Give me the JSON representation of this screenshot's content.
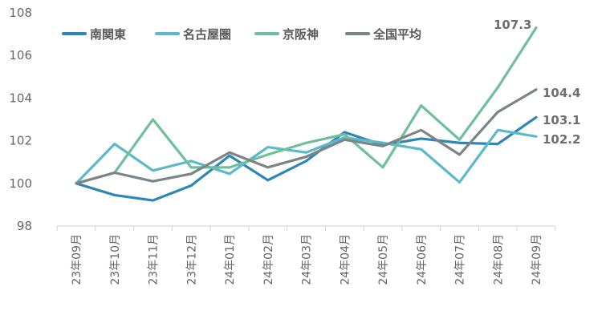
{
  "chart_data": {
    "type": "line",
    "title": "",
    "xlabel": "",
    "ylabel": "",
    "ylim": [
      98,
      108
    ],
    "yticks": [
      "98",
      "100",
      "102",
      "104",
      "106",
      "108"
    ],
    "categories": [
      "23年09月",
      "23年10月",
      "23年11月",
      "23年12月",
      "24年01月",
      "24年02月",
      "24年03月",
      "24年04月",
      "24年05月",
      "24年06月",
      "24年07月",
      "24年08月",
      "24年09月"
    ],
    "legend_position": "top-left",
    "grid": false,
    "series": [
      {
        "name": "南関東",
        "color": "#2E86B5",
        "values": [
          100.0,
          99.45,
          99.2,
          99.9,
          101.3,
          100.15,
          101.05,
          102.4,
          101.8,
          102.1,
          101.9,
          101.85,
          103.1
        ]
      },
      {
        "name": "名古屋圏",
        "color": "#5BBAC9",
        "values": [
          100.0,
          101.85,
          100.6,
          101.05,
          100.45,
          101.7,
          101.45,
          102.15,
          101.9,
          101.6,
          100.05,
          102.5,
          102.2
        ]
      },
      {
        "name": "京阪神",
        "color": "#6FBF9B",
        "values": [
          100.0,
          100.5,
          103.0,
          100.75,
          100.75,
          101.35,
          101.9,
          102.3,
          100.75,
          103.65,
          102.05,
          104.5,
          107.3
        ]
      },
      {
        "name": "全国平均",
        "color": "#7A8587",
        "values": [
          100.0,
          100.5,
          100.1,
          100.45,
          101.45,
          100.75,
          101.25,
          102.05,
          101.75,
          102.5,
          101.35,
          103.35,
          104.4
        ]
      }
    ],
    "end_labels": [
      {
        "series": 2,
        "text": "107.3"
      },
      {
        "series": 3,
        "text": "104.4"
      },
      {
        "series": 0,
        "text": "103.1"
      },
      {
        "series": 1,
        "text": "102.2"
      }
    ]
  }
}
